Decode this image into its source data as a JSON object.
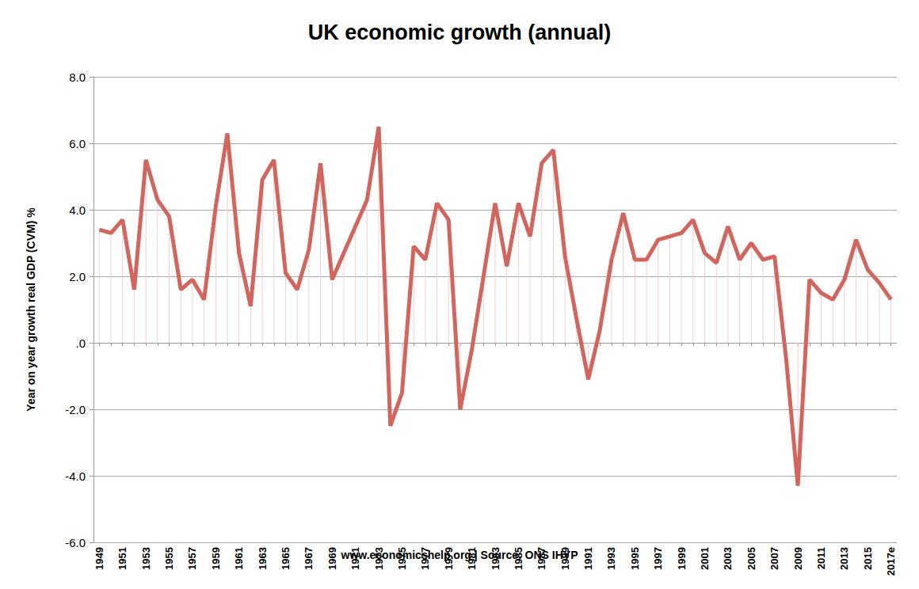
{
  "chart_data": {
    "type": "line",
    "title": "UK economic growth (annual)",
    "ylabel": "Year on year growth real GDP (CVM) %",
    "annotations": [
      "www.economicshelp.org | Source: ONS IHYP"
    ],
    "categories": [
      "1949",
      null,
      "1951",
      null,
      "1953",
      null,
      "1955",
      null,
      "1957",
      null,
      "1959",
      null,
      "1961",
      null,
      "1963",
      null,
      "1965",
      null,
      "1967",
      null,
      "1969",
      null,
      "1971",
      null,
      "1973",
      null,
      "1975",
      null,
      "1977",
      null,
      "1979",
      null,
      "1981",
      null,
      "1983",
      null,
      "1985",
      null,
      "1987",
      null,
      "1989",
      null,
      "1991",
      null,
      "1993",
      null,
      "1995",
      null,
      "1997",
      null,
      "1999",
      null,
      "2001",
      null,
      "2003",
      null,
      "2005",
      null,
      "2007",
      null,
      "2009",
      null,
      "2011",
      null,
      "2013",
      null,
      "2015",
      null,
      "2017e"
    ],
    "values": [
      3.4,
      3.3,
      3.7,
      1.6,
      5.5,
      4.3,
      3.8,
      1.6,
      1.9,
      1.3,
      4.1,
      6.3,
      2.7,
      1.1,
      4.9,
      5.5,
      2.1,
      1.6,
      2.8,
      5.4,
      1.9,
      2.7,
      3.5,
      4.3,
      6.5,
      -2.5,
      -1.5,
      2.9,
      2.5,
      4.2,
      3.7,
      -2.0,
      -0.2,
      2.0,
      4.2,
      2.3,
      4.2,
      3.2,
      5.4,
      5.8,
      2.6,
      0.7,
      -1.1,
      0.4,
      2.5,
      3.9,
      2.5,
      2.5,
      3.1,
      3.2,
      3.3,
      3.7,
      2.7,
      2.4,
      3.5,
      2.5,
      3.0,
      2.5,
      2.6,
      -0.5,
      -4.3,
      1.9,
      1.5,
      1.3,
      1.9,
      3.1,
      2.2,
      1.8,
      1.3
    ],
    "color": "#d2665f",
    "ylim": [
      -6,
      8
    ],
    "yticks": [
      {
        "value": -6,
        "label": "-6.0"
      },
      {
        "value": -4,
        "label": "-4.0"
      },
      {
        "value": -2,
        "label": "-2.0"
      },
      {
        "value": 0,
        "label": ".0"
      },
      {
        "value": 2,
        "label": "2.0"
      },
      {
        "value": 4,
        "label": "4.0"
      },
      {
        "value": 6,
        "label": "6.0"
      },
      {
        "value": 8,
        "label": "8.0"
      }
    ],
    "grid": true
  }
}
